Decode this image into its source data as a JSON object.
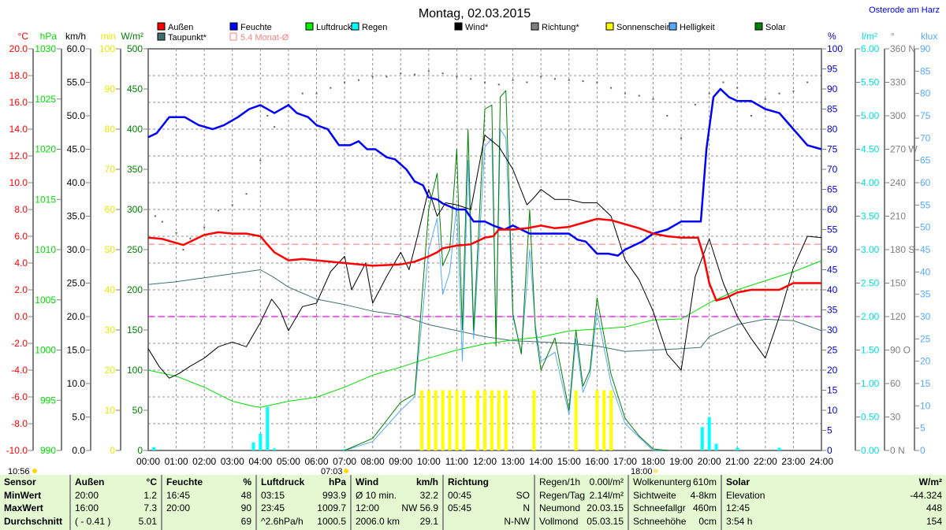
{
  "header": {
    "title": "Montag, 02.03.2015",
    "location": "Osterode am Harz"
  },
  "legend": [
    {
      "label": "Außen",
      "color": "#ff0000"
    },
    {
      "label": "Feuchte",
      "color": "#0000ff"
    },
    {
      "label": "Luftdruck*",
      "color": "#00ee00"
    },
    {
      "label": "Regen",
      "color": "#00ffff"
    },
    {
      "label": "Wind*",
      "color": "#000000"
    },
    {
      "label": "Richtung*",
      "color": "#808080"
    },
    {
      "label": "Sonnenschein",
      "color": "#ffff00"
    },
    {
      "label": "Helligkeit",
      "color": "#55aaff"
    },
    {
      "label": "Solar",
      "color": "#008000"
    },
    {
      "label": "Taupunkt*",
      "color": "#407070"
    },
    {
      "label": "5.4 Monat-Ø",
      "color": "#ff8080"
    }
  ],
  "markers": {
    "sunshine_duration": "10:56",
    "sunrise": "07:03",
    "sunset": "18:00"
  },
  "chart_data": {
    "type": "line",
    "title": "Montag, 02.03.2015",
    "x_ticks": [
      "00:00",
      "01:00",
      "02:00",
      "03:00",
      "04:00",
      "05:00",
      "06:00",
      "07:00",
      "08:00",
      "09:00",
      "10:00",
      "11:00",
      "12:00",
      "13:00",
      "14:00",
      "15:00",
      "16:00",
      "17:00",
      "18:00",
      "19:00",
      "20:00",
      "21:00",
      "22:00",
      "23:00",
      "24:00"
    ],
    "xlim_hours": [
      0,
      24
    ],
    "grid": true,
    "axes": {
      "temp": {
        "unit": "°C",
        "min": -10,
        "max": 20,
        "step": 2,
        "dec": 1,
        "color": "#ff0000",
        "side": "left"
      },
      "pressure": {
        "unit": "hPa",
        "min": 990,
        "max": 1030,
        "step": 5,
        "dec": 0,
        "color": "#00dd00",
        "side": "left"
      },
      "wind": {
        "unit": "km/h",
        "min": 0,
        "max": 60,
        "step": 5,
        "dec": 1,
        "color": "#000000",
        "side": "left"
      },
      "sunshine": {
        "unit": "min",
        "min": 0,
        "max": 100,
        "step": 10,
        "dec": 0,
        "color": "#e8e800",
        "side": "left"
      },
      "solar": {
        "unit": "W/m²",
        "min": 0,
        "max": 500,
        "step": 50,
        "dec": 0,
        "color": "#008000",
        "side": "left"
      },
      "humidity": {
        "unit": "%",
        "min": 0,
        "max": 100,
        "step": 5,
        "dec": 0,
        "color": "#0000cc",
        "side": "right"
      },
      "rain": {
        "unit": "l/m²",
        "min": 0,
        "max": 6,
        "step": 0.5,
        "dec": 2,
        "color": "#00e0e0",
        "side": "right"
      },
      "direction": {
        "unit": "°",
        "min": 0,
        "max": 360,
        "step": 30,
        "dec": 0,
        "color": "#808080",
        "side": "right",
        "compass": {
          "0": "N",
          "90": "O",
          "180": "S",
          "270": "W",
          "360": "N"
        }
      },
      "klux": {
        "unit": "klux",
        "min": 0,
        "max": 90,
        "step": 5,
        "dec": 0,
        "color": "#55aaff",
        "side": "right"
      }
    },
    "reference_lines": [
      {
        "name": "monthly-average",
        "axis": "temp",
        "value": 5.4,
        "color": "#ff8080"
      },
      {
        "name": "zero-degree",
        "axis": "temp",
        "value": 0,
        "color": "#ff00ff"
      }
    ],
    "series": [
      {
        "name": "Außen",
        "axis": "temp",
        "color": "#ff0000",
        "width": 2.5,
        "x": [
          0,
          0.5,
          1.25,
          1.6,
          2,
          2.5,
          3,
          3.5,
          4,
          4.2,
          4.5,
          5,
          5.5,
          6,
          7,
          8,
          9,
          9.5,
          10,
          10.3,
          10.5,
          11,
          11.5,
          12,
          12.3,
          12.5,
          13,
          13.5,
          14,
          14.5,
          15,
          15.5,
          16,
          16.5,
          17,
          17.5,
          18,
          18.5,
          19,
          19.6,
          19.8,
          20,
          20.25,
          20.6,
          21,
          21.5,
          22,
          22.5,
          23,
          23.5,
          24
        ],
        "y": [
          5.9,
          5.8,
          5.35,
          5.7,
          6.1,
          6.3,
          6.2,
          6.2,
          6.0,
          5.5,
          4.8,
          4.2,
          4.3,
          4.2,
          4.0,
          3.8,
          3.9,
          4.1,
          4.5,
          4.8,
          5.1,
          5.3,
          5.4,
          5.9,
          6.0,
          6.5,
          6.5,
          6.6,
          6.8,
          6.6,
          6.7,
          7.0,
          7.3,
          7.2,
          6.9,
          6.6,
          6.2,
          6.0,
          5.9,
          5.9,
          4.5,
          2.5,
          1.2,
          1.4,
          1.8,
          2.0,
          2.0,
          2.0,
          2.5,
          2.5,
          2.5
        ]
      },
      {
        "name": "Feuchte",
        "axis": "humidity",
        "color": "#0000ff",
        "width": 2.5,
        "x": [
          0,
          0.3,
          0.75,
          1.3,
          1.8,
          2.3,
          2.7,
          3.2,
          3.6,
          4,
          4.5,
          5,
          5.3,
          5.7,
          6,
          6.4,
          6.8,
          7.2,
          7.5,
          7.8,
          8.1,
          8.5,
          8.8,
          9.2,
          9.5,
          9.8,
          10,
          10.3,
          10.5,
          11,
          11.3,
          11.6,
          12,
          12.3,
          12.7,
          13,
          13.3,
          13.6,
          14,
          14.5,
          15,
          15.3,
          15.6,
          16,
          16.4,
          16.75,
          17,
          17.3,
          17.6,
          18,
          18.5,
          19,
          19.4,
          19.7,
          19.9,
          20.15,
          20.4,
          20.7,
          21,
          21.5,
          22,
          22.5,
          23,
          23.5,
          24
        ],
        "y": [
          78,
          79,
          83,
          83,
          81,
          80,
          81,
          83,
          85,
          86,
          84,
          86,
          84,
          83,
          81,
          80,
          76,
          76,
          77,
          75,
          75,
          73,
          72.5,
          70,
          67,
          66,
          63,
          62.5,
          61.5,
          60,
          60,
          57,
          57,
          56,
          55,
          56,
          55,
          54,
          54,
          54,
          54,
          52.5,
          52,
          49,
          49,
          48.5,
          50,
          51,
          52,
          54,
          55,
          57,
          57,
          57,
          75,
          88,
          90,
          88,
          87,
          87,
          85,
          84,
          80,
          76,
          75
        ]
      },
      {
        "name": "Luftdruck*",
        "axis": "pressure",
        "color": "#00dd00",
        "width": 1,
        "x": [
          0,
          1,
          2,
          3,
          3.75,
          4,
          5,
          6,
          7,
          8,
          9,
          10,
          11,
          12,
          13,
          14,
          15,
          16,
          17,
          18,
          19,
          20,
          21,
          22,
          23,
          24
        ],
        "y": [
          998,
          997.4,
          996.3,
          994.9,
          994.4,
          994.3,
          994.9,
          995.3,
          996.3,
          997.5,
          998.3,
          999.2,
          1000,
          1000.6,
          1001,
          1001.3,
          1001.9,
          1002.1,
          1002.3,
          1003,
          1003.1,
          1004.7,
          1006,
          1006.9,
          1007.8,
          1008.9
        ]
      },
      {
        "name": "Wind*",
        "axis": "wind",
        "color": "#000000",
        "width": 1,
        "x": [
          0,
          0.4,
          0.75,
          1.1,
          1.5,
          2,
          2.5,
          3,
          3.5,
          4,
          4.4,
          4.7,
          5,
          5.5,
          6,
          6.5,
          7,
          7.25,
          7.5,
          7.75,
          8,
          8.5,
          9,
          9.3,
          9.6,
          10,
          10.3,
          10.6,
          11,
          11.5,
          12,
          12.5,
          13,
          13.5,
          13.8,
          14,
          14.5,
          15,
          15.5,
          16,
          16.5,
          17,
          17.5,
          18,
          18.5,
          19,
          19.5,
          20,
          20.5,
          21,
          21.5,
          22,
          22.5,
          23,
          23.5,
          24
        ],
        "y": [
          15.2,
          12.5,
          10.8,
          11.5,
          12.6,
          13.8,
          15.5,
          16.2,
          15.5,
          19.1,
          22.6,
          21,
          17.9,
          21.5,
          22,
          26.7,
          29,
          24,
          26,
          28,
          22,
          26,
          29.6,
          27,
          32,
          39,
          35,
          37,
          36.7,
          36,
          47.1,
          45.4,
          42,
          36.7,
          38,
          39,
          37.5,
          37.5,
          37,
          37,
          35,
          28.5,
          25.5,
          20.8,
          14.4,
          12,
          26,
          31.6,
          25,
          20,
          16.7,
          13.8,
          20,
          27.3,
          32,
          31.8
        ]
      },
      {
        "name": "Taupunkt*",
        "axis": "temp",
        "color": "#407070",
        "width": 1,
        "x": [
          0,
          1,
          2,
          3,
          4,
          4.5,
          5,
          6,
          7,
          8,
          9,
          10,
          11,
          12,
          13,
          14,
          15,
          16,
          17,
          18,
          19,
          19.7,
          20,
          21,
          22,
          23,
          24
        ],
        "y": [
          2.4,
          2.6,
          2.9,
          3.2,
          3.5,
          2.9,
          2.2,
          1.3,
          0.9,
          0.4,
          0.1,
          -0.6,
          -1.05,
          -1.5,
          -1.8,
          -1.9,
          -2.0,
          -2.2,
          -2.6,
          -2.5,
          -2.4,
          -2.3,
          -1.5,
          -0.6,
          -0.2,
          -0.3,
          -1.05
        ]
      },
      {
        "name": "Helligkeit",
        "axis": "klux",
        "color": "#55aaff",
        "width": 1,
        "x": [
          7,
          8,
          9,
          9.5,
          10,
          10.3,
          10.5,
          10.75,
          11,
          11.2,
          11.4,
          11.6,
          12,
          12.25,
          12.4,
          12.55,
          12.75,
          13,
          13.3,
          13.6,
          13.8,
          14,
          14.5,
          15,
          15.25,
          15.5,
          15.75,
          16,
          16.5,
          17,
          17.5,
          18,
          18.5
        ],
        "y": [
          0,
          2,
          9,
          12,
          45,
          52,
          35,
          40,
          55,
          20,
          65,
          25,
          68,
          70,
          25,
          72,
          70,
          30,
          22,
          45,
          28,
          20,
          22,
          8,
          25,
          13,
          17,
          31,
          15,
          6,
          3,
          0,
          0
        ]
      },
      {
        "name": "Solar",
        "axis": "solar",
        "color": "#008000",
        "width": 1,
        "x": [
          7,
          8,
          9,
          9.5,
          10,
          10.3,
          10.5,
          10.75,
          11,
          11.2,
          11.4,
          11.6,
          12,
          12.25,
          12.4,
          12.55,
          12.75,
          13,
          13.3,
          13.6,
          13.8,
          14,
          14.5,
          15,
          15.25,
          15.5,
          15.75,
          16,
          16.5,
          17,
          17.5,
          18,
          18.5
        ],
        "y": [
          0,
          15,
          60,
          70,
          300,
          345,
          230,
          250,
          375,
          150,
          400,
          150,
          425,
          430,
          130,
          440,
          448,
          170,
          120,
          300,
          150,
          100,
          140,
          50,
          150,
          80,
          100,
          190,
          95,
          40,
          18,
          2,
          0
        ]
      }
    ],
    "direction_points": {
      "axis": "direction",
      "color": "#606060",
      "x": [
        0.25,
        0.5,
        1,
        1.25,
        1.5,
        2,
        2.5,
        3,
        3.5,
        4,
        4.25,
        4.5,
        5,
        5.5,
        6,
        6.5,
        7,
        7.5,
        8,
        8.5,
        9,
        9.5,
        10,
        10.5,
        11,
        11.5,
        12,
        12.5,
        13,
        13.5,
        14,
        14.5,
        15,
        15.5,
        16,
        16.5,
        17,
        17.5,
        18,
        18.5,
        19,
        19.5,
        20,
        20.5,
        21,
        21.5,
        22,
        22.5,
        23,
        23.5
      ],
      "y": [
        210,
        205,
        195,
        180,
        190,
        200,
        215,
        220,
        230,
        260,
        300,
        290,
        310,
        320,
        320,
        325,
        330,
        332,
        335,
        335,
        338,
        337,
        340,
        338,
        335,
        333,
        330,
        328,
        332,
        330,
        335,
        333,
        332,
        331,
        330,
        325,
        320,
        318,
        315,
        300,
        280,
        310,
        320,
        330,
        325,
        300,
        315,
        320,
        322,
        330
      ]
    },
    "bars": [
      {
        "name": "Sonnenschein",
        "axis": "sunshine",
        "color": "#ffff00",
        "x": [
          9.75,
          10,
          10.25,
          10.5,
          10.75,
          11,
          11.25,
          11.75,
          12,
          12.25,
          12.5,
          12.75,
          13.75,
          15.25,
          16,
          16.25,
          16.5
        ],
        "y": [
          15,
          15,
          15,
          15,
          15,
          15,
          15,
          15,
          15,
          15,
          15,
          15,
          15,
          15,
          15,
          15,
          15
        ]
      },
      {
        "name": "Regen",
        "axis": "rain",
        "color": "#00ffff",
        "x": [
          0.2,
          3.75,
          4,
          4.25,
          4.5,
          7,
          19.75,
          20,
          20.25,
          21,
          22.5
        ],
        "y": [
          0.05,
          0.12,
          0.25,
          0.65,
          0.03,
          0.02,
          0.35,
          0.5,
          0.1,
          0.04,
          0.04
        ]
      }
    ]
  },
  "table": [
    {
      "width": 90,
      "rows": [
        [
          "Sensor",
          ""
        ],
        [
          "MinWert",
          ""
        ],
        [
          "MaxWert",
          ""
        ],
        [
          "Durchschnitt",
          ""
        ]
      ],
      "bold_all": true
    },
    {
      "width": 116,
      "rows": [
        [
          "Außen",
          "°C"
        ],
        [
          "20:00",
          "1.2"
        ],
        [
          "16:00",
          "7.3"
        ],
        [
          "( - 0.41 )",
          "5.01"
        ]
      ],
      "bold_header": true
    },
    {
      "width": 120,
      "rows": [
        [
          "Feuchte",
          "%"
        ],
        [
          "16:45",
          "48"
        ],
        [
          "20:00",
          "90"
        ],
        [
          "",
          "69"
        ]
      ],
      "bold_header": true
    },
    {
      "width": 120,
      "rows": [
        [
          "Luftdruck",
          "hPa"
        ],
        [
          "03:15",
          "993.9"
        ],
        [
          "23:45",
          "1009.7"
        ],
        [
          "^2.6hPa/h",
          "1000.5"
        ]
      ],
      "bold_header": true
    },
    {
      "width": 117,
      "rows": [
        [
          "Wind",
          "km/h"
        ],
        [
          "Ø 10 min.",
          "32.2"
        ],
        [
          "12:00",
          "NW 56.9"
        ],
        [
          "2006.0 km",
          "29.1"
        ]
      ],
      "bold_header": true
    },
    {
      "width": 116,
      "rows": [
        [
          "Richtung",
          ""
        ],
        [
          "00:45",
          "SO"
        ],
        [
          "05:45",
          "N"
        ],
        [
          "",
          "N-NW"
        ]
      ],
      "bold_header": true
    },
    {
      "width": 119,
      "rows": [
        [
          "Regen/1h",
          "0.00l/m²"
        ],
        [
          "Regen/Tag",
          "2.14l/m²"
        ],
        [
          "Neumond",
          "20.03.15"
        ],
        [
          "Vollmond",
          "05.03.15"
        ]
      ]
    },
    {
      "width": 118,
      "rows": [
        [
          "Wolkenunterg",
          "610m"
        ],
        [
          "Sichtweite",
          "4-8km"
        ],
        [
          "Schneefallgr",
          "460m"
        ],
        [
          "Schneehöhe",
          "0cm"
        ]
      ]
    },
    {
      "width": 112,
      "rows": [
        [
          "Solar",
          "W/m²"
        ],
        [
          "Elevation",
          "-44.324"
        ],
        [
          "12:45",
          "448"
        ],
        [
          "3:54 h",
          "154"
        ]
      ],
      "bold_header": true
    }
  ]
}
